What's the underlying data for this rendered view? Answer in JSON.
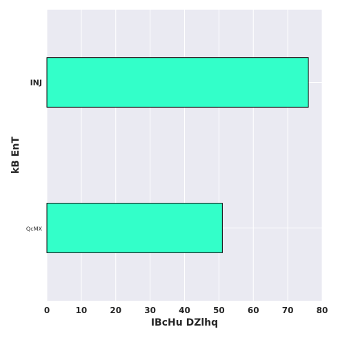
{
  "chart_data": {
    "type": "bar",
    "orientation": "horizontal",
    "categories": [
      "INJ",
      "QcMX"
    ],
    "values": [
      76,
      51
    ],
    "xlabel": "IBcHu DZlhq",
    "ylabel": "kB EnT",
    "xlim": [
      0,
      80
    ],
    "xticks": [
      0,
      10,
      20,
      30,
      40,
      50,
      60,
      70,
      80
    ],
    "grid": true,
    "bar_color": "#33ffc9",
    "bar_edge_color": "#000000",
    "background_color": "#eaeaf2",
    "grid_color": "#ffffff"
  }
}
